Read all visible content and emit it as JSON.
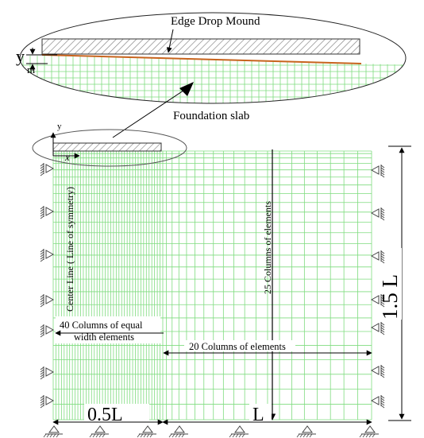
{
  "labels": {
    "edge_drop_mound": "Edge Drop Mound",
    "ym_main": "y",
    "ym_sub": "m",
    "foundation_slab": "Foundation slab",
    "axis_y": "y",
    "axis_x": "x",
    "center_line": "Center Line ( Line of symmetry)",
    "columns_vertical": "25 Columns of elements",
    "equal_width_line1": "40 Columns of equal",
    "equal_width_line2": "width elements",
    "columns_horizontal": "20 Columns of elements",
    "dim_half_L": "0.5L",
    "dim_L": "L",
    "dim_height": "1.5 L"
  },
  "colors": {
    "mesh": "#7fdc7f",
    "slab_hatch": "#8a8a8a",
    "mound_line": "#c8641e",
    "ink": "#000000"
  }
}
